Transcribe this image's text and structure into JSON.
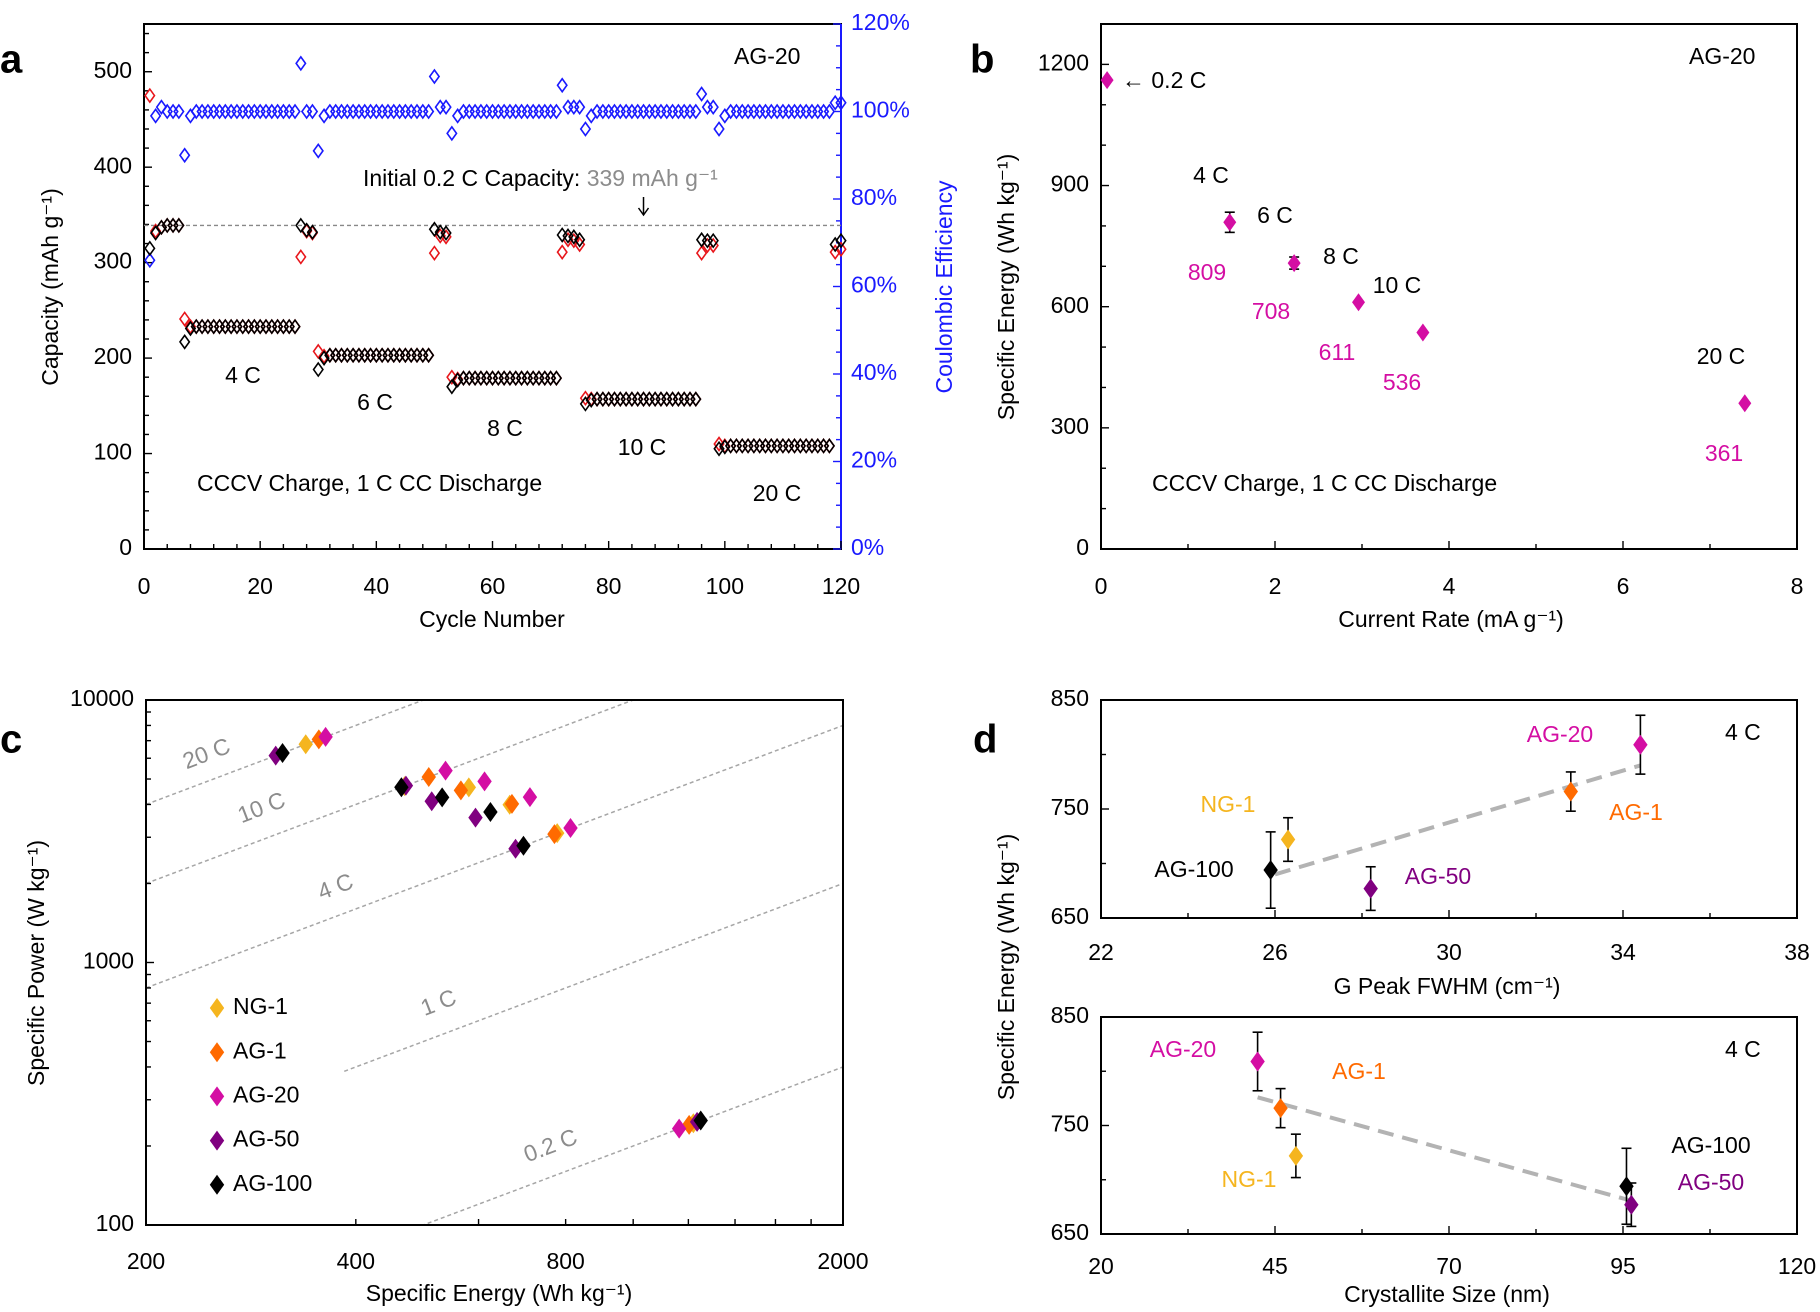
{
  "colors": {
    "charge": "#e8161b",
    "discharge": "#000000",
    "coulombic": "#1a1aff",
    "NG-1": "#f5b51f",
    "AG-1": "#ff6a00",
    "AG-20": "#d40ea3",
    "AG-50": "#800080",
    "AG-100": "#000000",
    "ref_line": "#a6a6a6",
    "trend": "#b3b3b3",
    "annotation_gray": "#8c8c8c"
  },
  "chart_data": [
    {
      "panel": "a",
      "type": "scatter",
      "xlabel": "Cycle Number",
      "ylabel": "Capacity (mAh g⁻¹)",
      "ylabel_right": "Coulombic Efficiency",
      "xlim": [
        0,
        120
      ],
      "ylim": [
        0,
        550
      ],
      "ylim_right": [
        0,
        120
      ],
      "xticks": [
        0,
        20,
        40,
        60,
        80,
        100,
        120
      ],
      "yticks": [
        0,
        100,
        200,
        300,
        400,
        500
      ],
      "yticks_right": [
        "0%",
        "20%",
        "40%",
        "60%",
        "80%",
        "100%",
        "120%"
      ],
      "sample": "AG-20",
      "grid": false,
      "note": "CCCV Charge, 1 C CC Discharge",
      "reference": {
        "value": 339,
        "label": "Initial 0.2 C Capacity: ",
        "value_label": "339 mAh g⁻¹"
      },
      "rate_labels": [
        "4 C",
        "6 C",
        "8 C",
        "10 C",
        "20 C"
      ],
      "cycles_start": 1,
      "charge_capacity": [
        475,
        333,
        337,
        339,
        339,
        339,
        241,
        233,
        233,
        233,
        233,
        233,
        233,
        233,
        233,
        233,
        233,
        233,
        233,
        233,
        233,
        233,
        233,
        233,
        233,
        233,
        306,
        333,
        331,
        207,
        202,
        203,
        203,
        203,
        203,
        203,
        203,
        203,
        203,
        203,
        203,
        203,
        203,
        203,
        203,
        203,
        203,
        203,
        203,
        310,
        328,
        327,
        180,
        178,
        179,
        179,
        179,
        179,
        179,
        179,
        179,
        179,
        179,
        179,
        179,
        179,
        179,
        179,
        179,
        179,
        179,
        311,
        324,
        323,
        319,
        158,
        157,
        157,
        157,
        157,
        157,
        157,
        157,
        157,
        157,
        157,
        157,
        157,
        157,
        157,
        157,
        157,
        157,
        157,
        157,
        310,
        318,
        318,
        110,
        108,
        108,
        108,
        108,
        108,
        108,
        108,
        108,
        108,
        108,
        108,
        108,
        108,
        108,
        108,
        108,
        108,
        108,
        108,
        311,
        314
      ],
      "discharge_capacity": [
        315,
        331,
        337,
        339,
        339,
        339,
        217,
        231,
        233,
        233,
        233,
        233,
        233,
        233,
        233,
        233,
        233,
        233,
        233,
        233,
        233,
        233,
        233,
        233,
        233,
        233,
        339,
        334,
        332,
        188,
        200,
        203,
        203,
        203,
        203,
        203,
        203,
        203,
        203,
        203,
        203,
        203,
        203,
        203,
        203,
        203,
        203,
        203,
        203,
        335,
        332,
        331,
        170,
        177,
        179,
        179,
        179,
        179,
        179,
        179,
        179,
        179,
        179,
        179,
        179,
        179,
        179,
        179,
        179,
        179,
        179,
        329,
        328,
        327,
        324,
        152,
        156,
        157,
        157,
        157,
        157,
        157,
        157,
        157,
        157,
        157,
        157,
        157,
        157,
        157,
        157,
        157,
        157,
        157,
        157,
        324,
        323,
        323,
        105,
        107,
        108,
        108,
        108,
        108,
        108,
        108,
        108,
        108,
        108,
        108,
        108,
        108,
        108,
        108,
        108,
        108,
        108,
        108,
        319,
        323
      ],
      "coulombic_efficiency": [
        66,
        99,
        101,
        100,
        100,
        100,
        90,
        99,
        100,
        100,
        100,
        100,
        100,
        100,
        100,
        100,
        100,
        100,
        100,
        100,
        100,
        100,
        100,
        100,
        100,
        100,
        111,
        100,
        100,
        91,
        99,
        100,
        100,
        100,
        100,
        100,
        100,
        100,
        100,
        100,
        100,
        100,
        100,
        100,
        100,
        100,
        100,
        100,
        100,
        108,
        101,
        101,
        95,
        99,
        100,
        100,
        100,
        100,
        100,
        100,
        100,
        100,
        100,
        100,
        100,
        100,
        100,
        100,
        100,
        100,
        100,
        106,
        101,
        101,
        101,
        96,
        99,
        100,
        100,
        100,
        100,
        100,
        100,
        100,
        100,
        100,
        100,
        100,
        100,
        100,
        100,
        100,
        100,
        100,
        100,
        104,
        101,
        101,
        96,
        99,
        100,
        100,
        100,
        100,
        100,
        100,
        100,
        100,
        100,
        100,
        100,
        100,
        100,
        100,
        100,
        100,
        100,
        100,
        102,
        102
      ]
    },
    {
      "panel": "b",
      "type": "scatter",
      "xlabel": "Current Rate (mA g⁻¹)",
      "ylabel": "Specific Energy (Wh kg⁻¹)",
      "xlim": [
        0,
        8
      ],
      "ylim": [
        0,
        1300
      ],
      "xticks": [
        0,
        2,
        4,
        6,
        8
      ],
      "yticks": [
        0,
        300,
        600,
        900,
        1200
      ],
      "sample": "AG-20",
      "note": "CCCV Charge, 1 C CC Discharge",
      "arrow_label": "← 0.2 C",
      "points": [
        {
          "rate": "0.2 C",
          "x": 0.07,
          "y": 1161,
          "err": 0,
          "label": ""
        },
        {
          "rate": "4 C",
          "x": 1.48,
          "y": 809,
          "err": 25,
          "label": "809"
        },
        {
          "rate": "6 C",
          "x": 2.22,
          "y": 708,
          "err": 15,
          "label": "708"
        },
        {
          "rate": "8 C",
          "x": 2.96,
          "y": 611,
          "err": 6,
          "label": "611"
        },
        {
          "rate": "10 C",
          "x": 3.7,
          "y": 536,
          "err": 6,
          "label": "536"
        },
        {
          "rate": "20 C",
          "x": 7.4,
          "y": 361,
          "err": 4,
          "label": "361"
        }
      ]
    },
    {
      "panel": "c",
      "type": "scatter",
      "log_x": true,
      "log_y": true,
      "xlabel": "Specific Energy (Wh kg⁻¹)",
      "ylabel": "Specific Power (W kg⁻¹)",
      "xlim": [
        200,
        2000
      ],
      "ylim": [
        100,
        10000
      ],
      "xticks": [
        200,
        400,
        800,
        2000
      ],
      "yticks": [
        100,
        1000,
        10000
      ],
      "legend": "left",
      "rate_lines": [
        {
          "label": "20 C",
          "c": 20
        },
        {
          "label": "10 C",
          "c": 10
        },
        {
          "label": "4 C",
          "c": 4
        },
        {
          "label": "1 C",
          "c": 1
        },
        {
          "label": "0.2 C",
          "c": 0.2
        }
      ],
      "c_rates": [
        0.2,
        4,
        6,
        8,
        10,
        20
      ],
      "series": [
        {
          "name": "NG-1",
          "energy": [
            1220,
            778,
            665,
            581,
            470,
            339
          ]
        },
        {
          "name": "AG-1",
          "energy": [
            1203,
            771,
            670,
            566,
            509,
            354
          ]
        },
        {
          "name": "AG-20",
          "energy": [
            1164,
            813,
            711,
            612,
            538,
            362
          ]
        },
        {
          "name": "AG-50",
          "energy": [
            1235,
            678,
            594,
            514,
            472,
            307
          ]
        },
        {
          "name": "AG-100",
          "energy": [
            1250,
            696,
            624,
            532,
            465,
            314
          ]
        }
      ]
    },
    {
      "panel": "d-top",
      "type": "scatter",
      "xlabel": "G Peak FWHM (cm⁻¹)",
      "ylabel": "Specific Energy (Wh kg⁻¹)",
      "xlim": [
        22,
        38
      ],
      "ylim": [
        650,
        850
      ],
      "xticks": [
        22,
        26,
        30,
        34,
        38
      ],
      "yticks": [
        650,
        750,
        850
      ],
      "rate": "4 C",
      "points": [
        {
          "name": "AG-20",
          "x": 34.4,
          "y": 809,
          "err": 27
        },
        {
          "name": "AG-1",
          "x": 32.8,
          "y": 766,
          "err": 18
        },
        {
          "name": "NG-1",
          "x": 26.3,
          "y": 722,
          "err": 20
        },
        {
          "name": "AG-100",
          "x": 25.9,
          "y": 694,
          "err": 35
        },
        {
          "name": "AG-50",
          "x": 28.2,
          "y": 677,
          "err": 20
        }
      ],
      "trend": [
        [
          26,
          690
        ],
        [
          34.4,
          790
        ]
      ]
    },
    {
      "panel": "d-bottom",
      "type": "scatter",
      "xlabel": "Crystallite Size (nm)",
      "ylabel": "Specific Energy (Wh kg⁻¹)",
      "xlim": [
        20,
        120
      ],
      "ylim": [
        650,
        850
      ],
      "xticks": [
        20,
        45,
        70,
        95,
        120
      ],
      "yticks": [
        650,
        750,
        850
      ],
      "rate": "4 C",
      "points": [
        {
          "name": "AG-20",
          "x": 42.5,
          "y": 809,
          "err": 27
        },
        {
          "name": "AG-1",
          "x": 45.8,
          "y": 766,
          "err": 18
        },
        {
          "name": "NG-1",
          "x": 48,
          "y": 722,
          "err": 20
        },
        {
          "name": "AG-100",
          "x": 95.5,
          "y": 694,
          "err": 35
        },
        {
          "name": "AG-50",
          "x": 96.2,
          "y": 677,
          "err": 20
        }
      ],
      "trend": [
        [
          42.5,
          776
        ],
        [
          96,
          681
        ]
      ]
    }
  ],
  "panel_letters": [
    "a",
    "b",
    "c",
    "d"
  ]
}
